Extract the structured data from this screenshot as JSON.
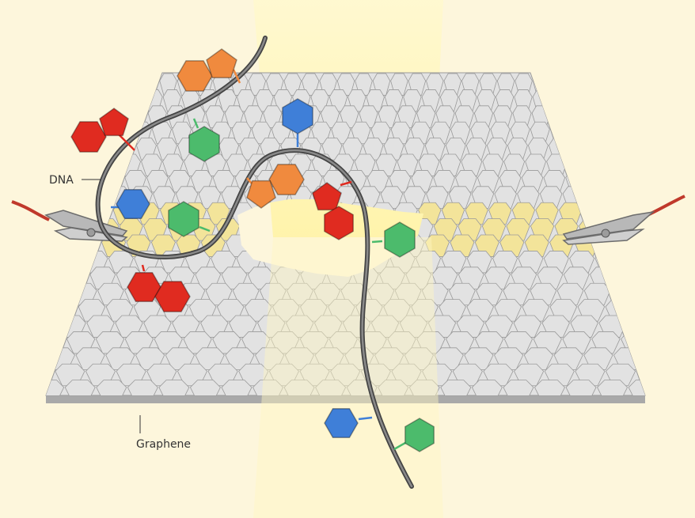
{
  "labels": {
    "dna": "DNA",
    "graphene": "Graphene"
  },
  "colors": {
    "background": "#fdf6dc",
    "beam": "#fff7c0",
    "graphene_cell": "#e2e2e2",
    "graphene_edge": "#9a9a9a",
    "graphene_side": "#a9a9a9",
    "electrode_region": "#f3e49a",
    "dna_strand": "#555555",
    "base_orange": "#f08a3e",
    "base_red": "#e02b20",
    "base_green": "#4cbb6c",
    "base_blue": "#3f7fd8",
    "wire": "#c0392b",
    "clip": "#b8b8b8"
  },
  "icons": {
    "left_clip": "alligator-clip-icon",
    "right_clip": "alligator-clip-icon"
  }
}
